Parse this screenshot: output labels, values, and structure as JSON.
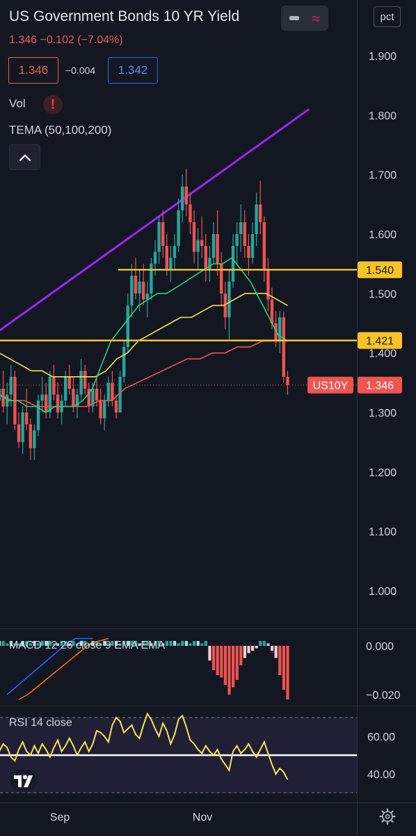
{
  "header": {
    "title": "US Government Bonds 10 YR Yield",
    "quote": "1.346 −0.102 (−7.04%)",
    "bid": "1.346",
    "spread": "−0.004",
    "ask": "1.342",
    "pct_label": "pct"
  },
  "indicators": {
    "vol_label": "Vol",
    "warning_glyph": "!",
    "tema_label": "TEMA (50,100,200)",
    "macd_label": "MACD 12 26 close 9 EMA EMA",
    "rsi_label": "RSI 14 close"
  },
  "colors": {
    "background": "#131722",
    "up": "#26a69a",
    "down": "#ef5350",
    "trendline": "#9c27f5",
    "support": "#f7c325",
    "tema_fast": "#29d17a",
    "tema_mid": "#f7e455",
    "tema_slow": "#f0554f",
    "rsi_line": "#f7e455",
    "price_tag": "#f0554f"
  },
  "chart_data": [
    {
      "type": "candlestick",
      "name": "US10Y",
      "x_ticks": [
        "Sep",
        "Nov"
      ],
      "y_ticks": [
        "1.900",
        "1.800",
        "1.700",
        "1.600",
        "1.500",
        "1.400",
        "1.300",
        "1.200",
        "1.100",
        "1.000"
      ],
      "ylim": [
        0.945,
        1.95
      ],
      "levels": [
        {
          "label": "1.540",
          "value": 1.54
        },
        {
          "label": "1.421",
          "value": 1.421
        }
      ],
      "last": {
        "symbol": "US10Y",
        "label": "1.346",
        "value": 1.346
      },
      "trendline": [
        {
          "i": 0,
          "v": 1.435
        },
        {
          "i": 80,
          "v": 1.81
        }
      ],
      "ohlc": [
        [
          1.32,
          1.36,
          1.29,
          1.34
        ],
        [
          1.34,
          1.37,
          1.3,
          1.31
        ],
        [
          1.31,
          1.35,
          1.28,
          1.33
        ],
        [
          1.33,
          1.38,
          1.31,
          1.36
        ],
        [
          1.36,
          1.37,
          1.27,
          1.28
        ],
        [
          1.28,
          1.3,
          1.24,
          1.25
        ],
        [
          1.25,
          1.31,
          1.23,
          1.3
        ],
        [
          1.3,
          1.34,
          1.27,
          1.28
        ],
        [
          1.28,
          1.29,
          1.22,
          1.24
        ],
        [
          1.24,
          1.28,
          1.22,
          1.27
        ],
        [
          1.27,
          1.33,
          1.26,
          1.32
        ],
        [
          1.32,
          1.36,
          1.3,
          1.33
        ],
        [
          1.33,
          1.35,
          1.29,
          1.3
        ],
        [
          1.3,
          1.37,
          1.29,
          1.36
        ],
        [
          1.36,
          1.38,
          1.32,
          1.33
        ],
        [
          1.33,
          1.35,
          1.29,
          1.3
        ],
        [
          1.3,
          1.33,
          1.28,
          1.32
        ],
        [
          1.32,
          1.37,
          1.31,
          1.36
        ],
        [
          1.36,
          1.38,
          1.33,
          1.34
        ],
        [
          1.34,
          1.36,
          1.3,
          1.31
        ],
        [
          1.31,
          1.34,
          1.29,
          1.33
        ],
        [
          1.33,
          1.39,
          1.32,
          1.37
        ],
        [
          1.37,
          1.38,
          1.33,
          1.34
        ],
        [
          1.34,
          1.35,
          1.3,
          1.31
        ],
        [
          1.31,
          1.35,
          1.3,
          1.34
        ],
        [
          1.34,
          1.36,
          1.31,
          1.32
        ],
        [
          1.32,
          1.34,
          1.28,
          1.29
        ],
        [
          1.29,
          1.33,
          1.27,
          1.32
        ],
        [
          1.32,
          1.36,
          1.31,
          1.35
        ],
        [
          1.35,
          1.37,
          1.31,
          1.32
        ],
        [
          1.32,
          1.33,
          1.29,
          1.3
        ],
        [
          1.3,
          1.37,
          1.3,
          1.36
        ],
        [
          1.36,
          1.42,
          1.35,
          1.41
        ],
        [
          1.41,
          1.5,
          1.4,
          1.48
        ],
        [
          1.48,
          1.55,
          1.46,
          1.53
        ],
        [
          1.53,
          1.56,
          1.49,
          1.5
        ],
        [
          1.5,
          1.54,
          1.47,
          1.52
        ],
        [
          1.52,
          1.55,
          1.48,
          1.49
        ],
        [
          1.49,
          1.52,
          1.46,
          1.5
        ],
        [
          1.5,
          1.56,
          1.49,
          1.55
        ],
        [
          1.55,
          1.59,
          1.53,
          1.57
        ],
        [
          1.57,
          1.63,
          1.55,
          1.62
        ],
        [
          1.62,
          1.64,
          1.56,
          1.58
        ],
        [
          1.58,
          1.6,
          1.53,
          1.54
        ],
        [
          1.54,
          1.58,
          1.52,
          1.56
        ],
        [
          1.56,
          1.6,
          1.54,
          1.58
        ],
        [
          1.58,
          1.66,
          1.57,
          1.64
        ],
        [
          1.64,
          1.7,
          1.62,
          1.68
        ],
        [
          1.68,
          1.71,
          1.63,
          1.65
        ],
        [
          1.65,
          1.67,
          1.6,
          1.62
        ],
        [
          1.62,
          1.64,
          1.55,
          1.57
        ],
        [
          1.57,
          1.61,
          1.54,
          1.59
        ],
        [
          1.59,
          1.63,
          1.56,
          1.58
        ],
        [
          1.58,
          1.6,
          1.52,
          1.54
        ],
        [
          1.54,
          1.58,
          1.52,
          1.56
        ],
        [
          1.56,
          1.62,
          1.55,
          1.6
        ],
        [
          1.6,
          1.64,
          1.53,
          1.55
        ],
        [
          1.55,
          1.57,
          1.48,
          1.5
        ],
        [
          1.5,
          1.52,
          1.44,
          1.46
        ],
        [
          1.46,
          1.54,
          1.42,
          1.52
        ],
        [
          1.52,
          1.6,
          1.51,
          1.58
        ],
        [
          1.58,
          1.62,
          1.55,
          1.6
        ],
        [
          1.6,
          1.65,
          1.57,
          1.62
        ],
        [
          1.62,
          1.64,
          1.56,
          1.58
        ],
        [
          1.58,
          1.6,
          1.53,
          1.56
        ],
        [
          1.56,
          1.62,
          1.55,
          1.6
        ],
        [
          1.6,
          1.67,
          1.58,
          1.65
        ],
        [
          1.65,
          1.69,
          1.6,
          1.62
        ],
        [
          1.62,
          1.63,
          1.52,
          1.54
        ],
        [
          1.54,
          1.56,
          1.47,
          1.49
        ],
        [
          1.49,
          1.51,
          1.44,
          1.45
        ],
        [
          1.45,
          1.47,
          1.41,
          1.42
        ],
        [
          1.42,
          1.47,
          1.4,
          1.46
        ],
        [
          1.46,
          1.47,
          1.35,
          1.36
        ],
        [
          1.36,
          1.37,
          1.33,
          1.346
        ]
      ],
      "tema_fast": [
        1.33,
        1.32,
        1.32,
        1.31,
        1.31,
        1.3,
        1.31,
        1.31,
        1.31,
        1.32,
        1.34,
        1.38,
        1.42,
        1.44,
        1.46,
        1.48,
        1.49,
        1.5,
        1.5,
        1.51,
        1.52,
        1.53,
        1.54,
        1.55,
        1.55,
        1.56,
        1.54,
        1.52,
        1.49,
        1.46,
        1.43,
        1.42
      ],
      "tema_mid": [
        1.4,
        1.39,
        1.38,
        1.37,
        1.37,
        1.36,
        1.36,
        1.36,
        1.36,
        1.36,
        1.37,
        1.39,
        1.4,
        1.42,
        1.43,
        1.44,
        1.45,
        1.46,
        1.46,
        1.47,
        1.48,
        1.48,
        1.49,
        1.5,
        1.5,
        1.5,
        1.49,
        1.48
      ],
      "tema_slow": [
        1.33,
        1.32,
        1.32,
        1.31,
        1.31,
        1.31,
        1.31,
        1.31,
        1.32,
        1.32,
        1.34,
        1.35,
        1.36,
        1.37,
        1.38,
        1.39,
        1.39,
        1.4,
        1.4,
        1.41,
        1.41,
        1.42,
        1.42,
        1.42
      ]
    },
    {
      "type": "bar",
      "name": "MACD",
      "y_ticks": [
        "0.000",
        "−0.020"
      ],
      "ylim": [
        -0.024,
        0.003
      ],
      "histogram": [
        0.002,
        0.002,
        0.001,
        0.002,
        0.001,
        0.001,
        0.002,
        0.002,
        0.001,
        0.002,
        0.001,
        0.002,
        0.002,
        0.002,
        0.001,
        0.001,
        0.002,
        0.002,
        0.001,
        0.002,
        0.001,
        0.002,
        0.002,
        0.001,
        0.002,
        0.002,
        0.001,
        0.002,
        0.001,
        0.002,
        0.002,
        0.001,
        0.002,
        0.002,
        0.002,
        0.002,
        0.001,
        0.002,
        0.002,
        0.001,
        0.002,
        0.002,
        0.001,
        0.002,
        0.002,
        0.002,
        0.001,
        0.002,
        0.002,
        0.001,
        0.002,
        0.002,
        0.001,
        0.002,
        -0.006,
        -0.01,
        -0.012,
        -0.013,
        -0.016,
        -0.02,
        -0.017,
        -0.014,
        -0.008,
        -0.005,
        -0.003,
        -0.002,
        -0.001,
        0.002,
        0.002,
        0.001,
        -0.002,
        -0.005,
        -0.012,
        -0.018,
        -0.022
      ],
      "macd_line": [
        -0.02,
        -0.017,
        -0.014,
        -0.011,
        -0.008,
        -0.005,
        -0.002,
        0.001,
        0.003,
        0.003,
        0.003
      ],
      "signal_line": [
        -0.022,
        -0.02,
        -0.017,
        -0.014,
        -0.011,
        -0.008,
        -0.005,
        -0.002,
        0.001,
        0.002,
        0.003
      ]
    },
    {
      "type": "line",
      "name": "RSI",
      "y_ticks": [
        "60.00",
        "40.00"
      ],
      "ylim": [
        30,
        74
      ],
      "bands": [
        70,
        50,
        30
      ],
      "values": [
        52,
        56,
        54,
        49,
        47,
        53,
        57,
        52,
        50,
        55,
        51,
        56,
        53,
        49,
        54,
        58,
        52,
        55,
        59,
        55,
        50,
        54,
        57,
        52,
        56,
        63,
        62,
        60,
        57,
        66,
        70,
        68,
        62,
        64,
        66,
        61,
        59,
        66,
        72,
        69,
        64,
        60,
        67,
        63,
        56,
        61,
        69,
        71,
        65,
        58,
        56,
        53,
        51,
        55,
        52,
        50,
        53,
        48,
        45,
        42,
        52,
        55,
        51,
        53,
        56,
        52,
        49,
        53,
        57,
        51,
        45,
        40,
        43,
        41,
        37
      ]
    }
  ]
}
